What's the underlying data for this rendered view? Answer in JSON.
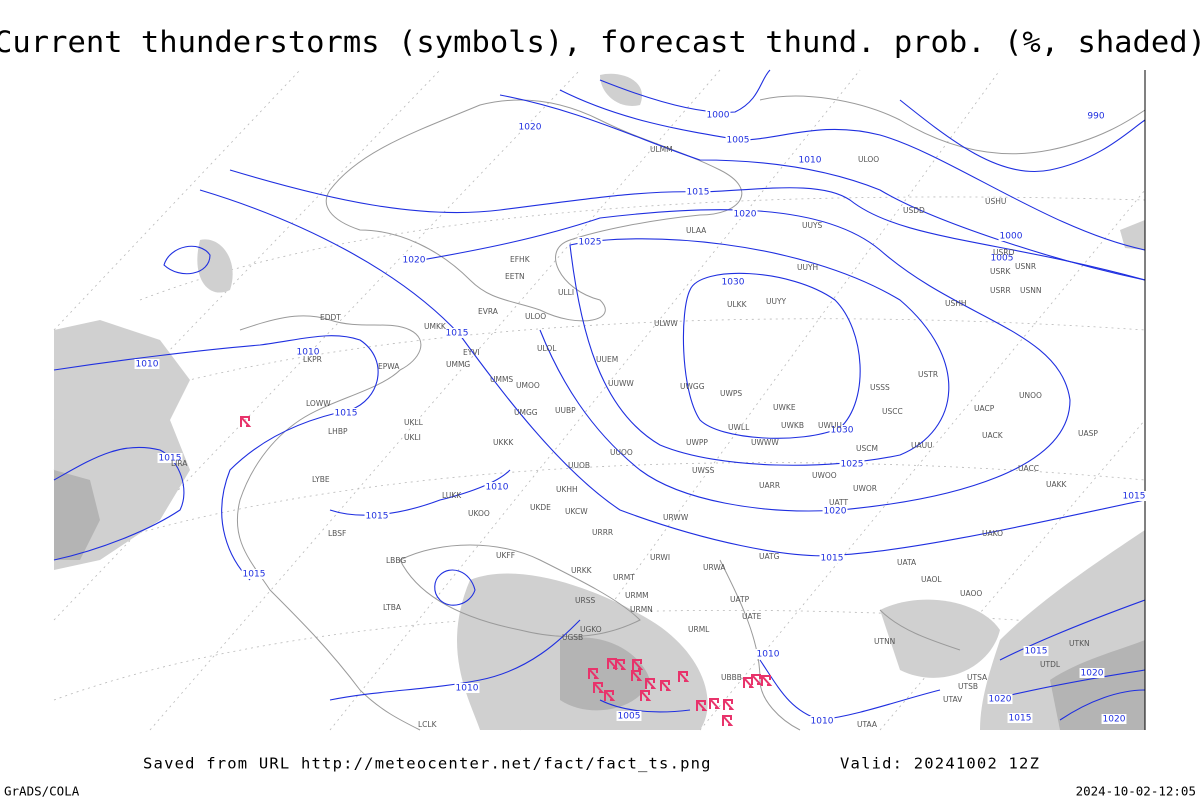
{
  "header": {
    "title": "Current thunderstorms (symbols), forecast thund. prob. (%, shaded)"
  },
  "isobar_labels": [
    "1020",
    "1000",
    "1005",
    "1010",
    "1015",
    "1020",
    "1025",
    "1020",
    "1030",
    "1015",
    "1010",
    "1010",
    "1015",
    "1030",
    "1025",
    "1015",
    "1010",
    "1015",
    "1020",
    "1015",
    "1015",
    "1010",
    "1010",
    "1005",
    "1010",
    "1000",
    "1005",
    "990",
    "1015",
    "1020",
    "1015",
    "1020",
    "1020",
    "1015"
  ],
  "station_labels": [
    "ULMM",
    "ULOO",
    "ULAA",
    "UUYS",
    "USDD",
    "USHU",
    "USRO",
    "USRK",
    "USNR",
    "USRR",
    "USNN",
    "UUYH",
    "ULKK",
    "UUYY",
    "USHH",
    "EFHK",
    "EETN",
    "ULLI",
    "EVRA",
    "ULOO",
    "UMKK",
    "ULWW",
    "EPWA",
    "UMMG",
    "EYVI",
    "ULOL",
    "UUEM",
    "UMMS",
    "UMOO",
    "UUWW",
    "UWGG",
    "UWPS",
    "USSS",
    "USTR",
    "UWKE",
    "UWKB",
    "UWUU",
    "USCC",
    "UACP",
    "UNOO",
    "UACK",
    "UASP",
    "UMGG",
    "UUBP",
    "UKLL",
    "UKLI",
    "UKKK",
    "UWLL",
    "UWWW",
    "UWPP",
    "USCM",
    "UAUU",
    "UUOO",
    "UUOB",
    "UWSS",
    "UACC",
    "UARR",
    "UWOO",
    "UWOR",
    "UATT",
    "UAKK",
    "LUKK",
    "UKOO",
    "UKCW",
    "URWW",
    "UKDE",
    "UKHH",
    "URRR",
    "UAKO",
    "URWI",
    "UATG",
    "UATA",
    "UKFF",
    "URKK",
    "URMT",
    "URWA",
    "UAOL",
    "UAOO",
    "URSS",
    "URMM",
    "URMN",
    "UATP",
    "UATE",
    "UGKO",
    "UGSB",
    "URML",
    "UTNN",
    "UBBB",
    "UTSA",
    "UTAV",
    "UTSB",
    "EDDT",
    "LKPR",
    "LOWW",
    "LHBP",
    "LYBE",
    "LBSF",
    "LBBG",
    "LTBA",
    "LIRA",
    "LCLK",
    "UTAA",
    "UTDL",
    "UTKN"
  ],
  "footer": {
    "saved_from": "Saved from URL http://meteocenter.net/fact/fact_ts.png",
    "valid": "Valid: 20241002 12Z",
    "software": "GrADS/COLA",
    "timestamp": "2024-10-02-12:05"
  }
}
